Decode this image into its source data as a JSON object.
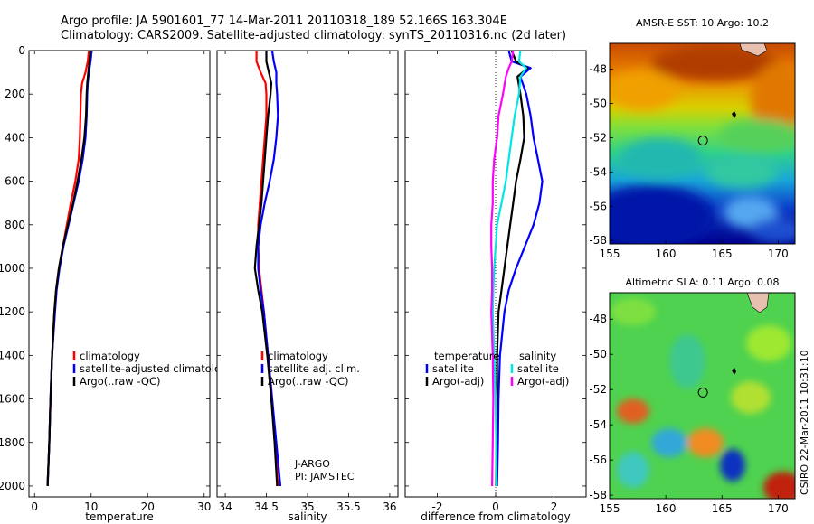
{
  "header": {
    "line1": "Argo profile: JA 5901601_77 14-Mar-2011 20110318_189 52.166S 163.304E",
    "line2": "Climatology: CARS2009. Satellite-adjusted climatology: synTS_20110316.nc (2d later)"
  },
  "footer": {
    "credit": "CSIRO 22-Mar-2011 10:31:10",
    "agency": "J-ARGO",
    "pi": "PI: JAMSTEC"
  },
  "colors": {
    "climatology": "#ff0000",
    "satellite": "#0000ff",
    "argo": "#000000",
    "satellite_salinity": "#00e6e6",
    "argo_adj_salinity": "#ff00ff"
  },
  "chart_data": [
    {
      "id": "temperature",
      "type": "line",
      "xlabel": "temperature",
      "xlim": [
        -1,
        31
      ],
      "xticks": [
        0,
        10,
        20,
        30
      ],
      "ylim": [
        2050,
        0
      ],
      "yticks": [
        0,
        200,
        400,
        600,
        800,
        1000,
        1200,
        1400,
        1600,
        1800,
        2000
      ],
      "legend_position": "lower-center",
      "legend": [
        "climatology",
        "satellite-adjusted climatology",
        "Argo(..raw -QC)"
      ],
      "series": [
        {
          "name": "climatology",
          "color": "#ff0000",
          "depth": [
            0,
            50,
            100,
            150,
            200,
            300,
            400,
            500,
            600,
            700,
            800,
            900,
            1000,
            1100,
            1200,
            1400,
            1600,
            1800,
            2000
          ],
          "values": [
            9.6,
            9.4,
            9.0,
            8.4,
            8.2,
            8.1,
            8.0,
            7.8,
            7.2,
            6.4,
            5.7,
            5.0,
            4.3,
            3.8,
            3.5,
            3.1,
            2.8,
            2.6,
            2.3
          ]
        },
        {
          "name": "satellite-adjusted climatology",
          "color": "#0000ff",
          "depth": [
            0,
            50,
            100,
            150,
            200,
            300,
            400,
            500,
            600,
            700,
            800,
            900,
            1000,
            1100,
            1200,
            1400,
            1600,
            1800,
            2000
          ],
          "values": [
            10.1,
            9.9,
            9.6,
            9.4,
            9.3,
            9.2,
            9.0,
            8.5,
            7.8,
            6.9,
            6.0,
            5.1,
            4.4,
            3.9,
            3.6,
            3.1,
            2.8,
            2.6,
            2.3
          ]
        },
        {
          "name": "Argo(..raw -QC)",
          "color": "#000000",
          "depth": [
            0,
            50,
            100,
            150,
            200,
            300,
            400,
            500,
            600,
            700,
            800,
            900,
            1000,
            1100,
            1200,
            1400,
            1600,
            1800,
            2000
          ],
          "values": [
            9.9,
            9.7,
            9.5,
            9.3,
            9.2,
            9.1,
            8.8,
            8.3,
            7.6,
            6.8,
            5.9,
            5.0,
            4.3,
            3.8,
            3.5,
            3.1,
            2.8,
            2.6,
            2.3
          ]
        }
      ]
    },
    {
      "id": "salinity",
      "type": "line",
      "xlabel": "salinity",
      "xlim": [
        33.9,
        36.1
      ],
      "xticks": [
        34,
        34.5,
        35,
        35.5,
        36
      ],
      "ylim": [
        2050,
        0
      ],
      "yticks": [
        0,
        200,
        400,
        600,
        800,
        1000,
        1200,
        1400,
        1600,
        1800,
        2000
      ],
      "legend_position": "lower-center",
      "legend": [
        "climatology",
        "satellite adj. clim.",
        "Argo(..raw -QC)"
      ],
      "series": [
        {
          "name": "climatology",
          "color": "#ff0000",
          "depth": [
            0,
            50,
            100,
            150,
            200,
            300,
            400,
            500,
            600,
            700,
            800,
            900,
            1000,
            1100,
            1200,
            1400,
            1600,
            1800,
            2000
          ],
          "values": [
            34.38,
            34.38,
            34.43,
            34.49,
            34.5,
            34.5,
            34.48,
            34.46,
            34.44,
            34.42,
            34.4,
            34.4,
            34.41,
            34.44,
            34.47,
            34.52,
            34.57,
            34.61,
            34.64
          ]
        },
        {
          "name": "satellite adj. clim.",
          "color": "#0000ff",
          "depth": [
            0,
            50,
            100,
            150,
            200,
            300,
            400,
            500,
            600,
            700,
            800,
            900,
            1000,
            1100,
            1200,
            1400,
            1600,
            1800,
            2000
          ],
          "values": [
            34.57,
            34.59,
            34.62,
            34.62,
            34.63,
            34.64,
            34.62,
            34.59,
            34.54,
            34.48,
            34.43,
            34.4,
            34.4,
            34.43,
            34.47,
            34.52,
            34.57,
            34.62,
            34.67
          ]
        },
        {
          "name": "Argo(..raw -QC)",
          "color": "#000000",
          "depth": [
            0,
            50,
            100,
            150,
            200,
            300,
            400,
            500,
            600,
            700,
            800,
            900,
            1000,
            1100,
            1200,
            1400,
            1600,
            1800,
            2000
          ],
          "values": [
            34.5,
            34.5,
            34.53,
            34.56,
            34.55,
            34.52,
            34.5,
            34.48,
            34.46,
            34.44,
            34.41,
            34.38,
            34.36,
            34.4,
            34.45,
            34.51,
            34.56,
            34.6,
            34.63
          ]
        }
      ]
    },
    {
      "id": "difference",
      "type": "line",
      "xlabel": "difference from climatology",
      "xlim": [
        -3.1,
        3.1
      ],
      "xticks": [
        -2,
        0,
        2
      ],
      "ylim": [
        2050,
        0
      ],
      "yticks": [
        0,
        200,
        400,
        600,
        800,
        1000,
        1200,
        1400,
        1600,
        1800,
        2000
      ],
      "legend_position": "lower-center",
      "legend_groups": [
        {
          "title": "temperature",
          "entries": [
            "satellite",
            "Argo(-adj)"
          ]
        },
        {
          "title": "salinity",
          "entries": [
            "satellite",
            "Argo(-adj)"
          ]
        }
      ],
      "series": [
        {
          "name": "temperature satellite",
          "color": "#0000ff",
          "depth": [
            0,
            50,
            80,
            120,
            200,
            300,
            400,
            500,
            600,
            700,
            800,
            900,
            1000,
            1100,
            1200,
            1400,
            1600,
            1800,
            2000
          ],
          "values": [
            0.45,
            0.55,
            1.2,
            0.85,
            1.05,
            1.2,
            1.3,
            1.45,
            1.6,
            1.5,
            1.3,
            1.0,
            0.7,
            0.45,
            0.3,
            0.15,
            0.1,
            0.08,
            0.05
          ]
        },
        {
          "name": "temperature Argo(-adj)",
          "color": "#000000",
          "depth": [
            0,
            50,
            80,
            120,
            200,
            300,
            400,
            500,
            600,
            700,
            800,
            900,
            1000,
            1100,
            1200,
            1400,
            1600,
            1800,
            2000
          ],
          "values": [
            0.55,
            0.7,
            1.1,
            0.75,
            0.85,
            0.95,
            0.98,
            0.85,
            0.7,
            0.6,
            0.5,
            0.4,
            0.3,
            0.2,
            0.1,
            0.05,
            0.05,
            0.03,
            0.02
          ]
        },
        {
          "name": "salinity satellite",
          "color": "#00e6e6",
          "depth": [
            0,
            50,
            80,
            120,
            200,
            300,
            400,
            500,
            600,
            700,
            800,
            900,
            1000,
            1100,
            1200,
            1400,
            1600,
            1800,
            2000
          ],
          "values": [
            0.85,
            0.8,
            1.05,
            0.85,
            0.8,
            0.65,
            0.55,
            0.45,
            0.35,
            0.2,
            0.05,
            0.0,
            -0.05,
            -0.08,
            -0.1,
            -0.05,
            0.0,
            0.02,
            0.03
          ]
        },
        {
          "name": "salinity Argo(-adj)",
          "color": "#ff00ff",
          "depth": [
            0,
            50,
            80,
            120,
            200,
            300,
            400,
            500,
            600,
            700,
            800,
            900,
            1000,
            1100,
            1200,
            1400,
            1600,
            1800,
            2000
          ],
          "values": [
            0.6,
            0.55,
            0.45,
            0.35,
            0.25,
            0.1,
            0.05,
            -0.05,
            -0.1,
            -0.1,
            -0.15,
            -0.15,
            -0.12,
            -0.12,
            -0.15,
            -0.1,
            -0.08,
            -0.1,
            -0.12
          ]
        }
      ]
    },
    {
      "id": "sst-map",
      "type": "heatmap",
      "title": "AMSR-E SST: 10 Argo: 10.2",
      "xlim": [
        155,
        171.5
      ],
      "ylim": [
        -58.2,
        -46.5
      ],
      "xticks": [
        155,
        160,
        165,
        170
      ],
      "yticks": [
        -48,
        -50,
        -52,
        -54,
        -56,
        -58
      ],
      "marker": {
        "lon": 163.304,
        "lat": -52.166
      }
    },
    {
      "id": "sla-map",
      "type": "heatmap",
      "title": "Altimetric SLA: 0.11 Argo: 0.08",
      "xlim": [
        155,
        171.5
      ],
      "ylim": [
        -58.2,
        -46.5
      ],
      "xticks": [
        155,
        160,
        165,
        170
      ],
      "yticks": [
        -48,
        -50,
        -52,
        -54,
        -56,
        -58
      ],
      "marker": {
        "lon": 163.304,
        "lat": -52.166
      }
    }
  ]
}
